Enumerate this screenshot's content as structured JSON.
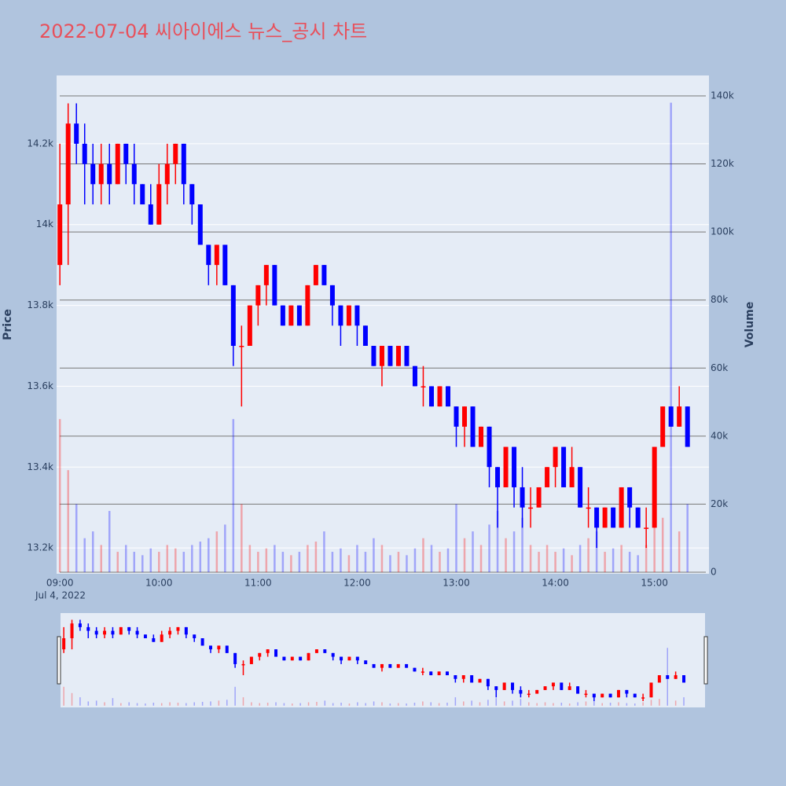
{
  "chart_data": {
    "type": "candlestick",
    "title": "2022-07-04 씨아이에스 뉴스_공시 차트",
    "y_label": "Price",
    "y2_label": "Volume",
    "date_label": "Jul 4, 2022",
    "increasing_color": "#ff0000",
    "decreasing_color": "#0000ff",
    "x": [
      "09:00",
      "09:05",
      "09:10",
      "09:15",
      "09:20",
      "09:25",
      "09:30",
      "09:35",
      "09:40",
      "09:45",
      "09:50",
      "09:55",
      "10:00",
      "10:05",
      "10:10",
      "10:15",
      "10:20",
      "10:25",
      "10:30",
      "10:35",
      "10:40",
      "10:45",
      "10:50",
      "10:55",
      "11:00",
      "11:05",
      "11:10",
      "11:15",
      "11:20",
      "11:25",
      "11:30",
      "11:35",
      "11:40",
      "11:45",
      "11:50",
      "11:55",
      "12:00",
      "12:05",
      "12:10",
      "12:15",
      "12:20",
      "12:25",
      "12:30",
      "12:35",
      "12:40",
      "12:45",
      "12:50",
      "12:55",
      "13:00",
      "13:05",
      "13:10",
      "13:15",
      "13:20",
      "13:25",
      "13:30",
      "13:35",
      "13:40",
      "13:45",
      "13:50",
      "13:55",
      "14:00",
      "14:05",
      "14:10",
      "14:15",
      "14:20",
      "14:25",
      "14:30",
      "14:35",
      "14:40",
      "14:45",
      "14:50",
      "14:55",
      "15:00",
      "15:05",
      "15:10",
      "15:15",
      "15:20"
    ],
    "open": [
      13900,
      14050,
      14250,
      14200,
      14150,
      14100,
      14150,
      14100,
      14200,
      14150,
      14100,
      14050,
      14000,
      14100,
      14150,
      14200,
      14100,
      14050,
      13950,
      13900,
      13950,
      13850,
      13700,
      13700,
      13800,
      13850,
      13900,
      13800,
      13750,
      13800,
      13750,
      13850,
      13900,
      13850,
      13800,
      13750,
      13800,
      13750,
      13700,
      13650,
      13700,
      13650,
      13700,
      13650,
      13600,
      13600,
      13550,
      13600,
      13550,
      13500,
      13550,
      13450,
      13500,
      13400,
      13350,
      13450,
      13350,
      13300,
      13300,
      13350,
      13400,
      13450,
      13350,
      13400,
      13300,
      13300,
      13250,
      13300,
      13250,
      13350,
      13300,
      13250,
      13250,
      13450,
      13550,
      13500,
      13550
    ],
    "high": [
      14200,
      14300,
      14300,
      14250,
      14200,
      14200,
      14200,
      14200,
      14200,
      14200,
      14100,
      14100,
      14150,
      14200,
      14200,
      14200,
      14100,
      14050,
      13950,
      13950,
      13950,
      13850,
      13750,
      13800,
      13850,
      13900,
      13900,
      13800,
      13800,
      13800,
      13850,
      13900,
      13900,
      13850,
      13800,
      13800,
      13800,
      13750,
      13700,
      13700,
      13700,
      13700,
      13700,
      13650,
      13650,
      13600,
      13600,
      13600,
      13550,
      13550,
      13550,
      13500,
      13500,
      13400,
      13450,
      13450,
      13400,
      13350,
      13350,
      13400,
      13450,
      13450,
      13450,
      13400,
      13350,
      13300,
      13300,
      13300,
      13350,
      13350,
      13300,
      13300,
      13450,
      13550,
      13550,
      13600,
      13550
    ],
    "low": [
      13850,
      13900,
      14150,
      14050,
      14050,
      14050,
      14050,
      14100,
      14100,
      14050,
      14050,
      14000,
      14000,
      14050,
      14100,
      14050,
      14000,
      13950,
      13850,
      13850,
      13850,
      13650,
      13550,
      13700,
      13750,
      13800,
      13800,
      13750,
      13750,
      13750,
      13750,
      13850,
      13850,
      13750,
      13700,
      13750,
      13700,
      13700,
      13650,
      13600,
      13650,
      13650,
      13650,
      13600,
      13550,
      13550,
      13550,
      13550,
      13450,
      13450,
      13450,
      13450,
      13350,
      13250,
      13350,
      13300,
      13250,
      13250,
      13300,
      13350,
      13350,
      13350,
      13350,
      13300,
      13250,
      13200,
      13250,
      13250,
      13250,
      13250,
      13250,
      13200,
      13250,
      13450,
      13500,
      13500,
      13450
    ],
    "close": [
      14050,
      14250,
      14200,
      14150,
      14100,
      14150,
      14100,
      14200,
      14150,
      14100,
      14050,
      14000,
      14100,
      14150,
      14200,
      14100,
      14050,
      13950,
      13900,
      13950,
      13850,
      13700,
      13700,
      13800,
      13850,
      13900,
      13800,
      13750,
      13800,
      13750,
      13850,
      13900,
      13850,
      13800,
      13750,
      13800,
      13750,
      13700,
      13650,
      13700,
      13650,
      13700,
      13650,
      13600,
      13600,
      13550,
      13600,
      13550,
      13500,
      13550,
      13450,
      13500,
      13400,
      13350,
      13450,
      13350,
      13300,
      13300,
      13350,
      13400,
      13450,
      13350,
      13400,
      13300,
      13300,
      13250,
      13300,
      13250,
      13350,
      13300,
      13250,
      13250,
      13450,
      13550,
      13500,
      13550,
      13450
    ],
    "volume": [
      45000,
      30000,
      20000,
      10000,
      12000,
      8000,
      18000,
      6000,
      8000,
      6000,
      5000,
      7000,
      6000,
      8000,
      7000,
      6000,
      8000,
      9000,
      10000,
      12000,
      14000,
      45000,
      20000,
      8000,
      6000,
      7000,
      8000,
      6000,
      5000,
      6000,
      8000,
      9000,
      12000,
      6000,
      7000,
      5000,
      8000,
      6000,
      10000,
      8000,
      5000,
      6000,
      5000,
      7000,
      10000,
      8000,
      6000,
      7000,
      20000,
      10000,
      12000,
      8000,
      14000,
      18000,
      10000,
      12000,
      16000,
      8000,
      6000,
      8000,
      6000,
      7000,
      5000,
      8000,
      10000,
      12000,
      6000,
      7000,
      8000,
      6000,
      5000,
      8000,
      14000,
      16000,
      138000,
      12000,
      20000
    ],
    "xlim": [
      "08:58",
      "15:33"
    ],
    "xticks": [
      "09:00",
      "10:00",
      "11:00",
      "12:00",
      "13:00",
      "14:00",
      "15:00"
    ],
    "ylim": [
      13136,
      14369
    ],
    "yticks": [
      {
        "value": 13200,
        "label": "13.2k"
      },
      {
        "value": 13400,
        "label": "13.4k"
      },
      {
        "value": 13600,
        "label": "13.6k"
      },
      {
        "value": 13800,
        "label": "13.8k"
      },
      {
        "value": 14000,
        "label": "14k"
      },
      {
        "value": 14200,
        "label": "14.2k"
      }
    ],
    "y2lim": [
      -460,
      146000
    ],
    "y2ticks": [
      0,
      {
        "value": 20000,
        "label": "20k"
      },
      {
        "value": 40000,
        "label": "40k"
      },
      {
        "value": 60000,
        "label": "60k"
      },
      {
        "value": 80000,
        "label": "80k"
      },
      {
        "value": 100000,
        "label": "100k"
      },
      {
        "value": 120000,
        "label": "120k"
      },
      {
        "value": 140000,
        "label": "140k"
      }
    ],
    "grid": true,
    "rangeslider": true
  }
}
